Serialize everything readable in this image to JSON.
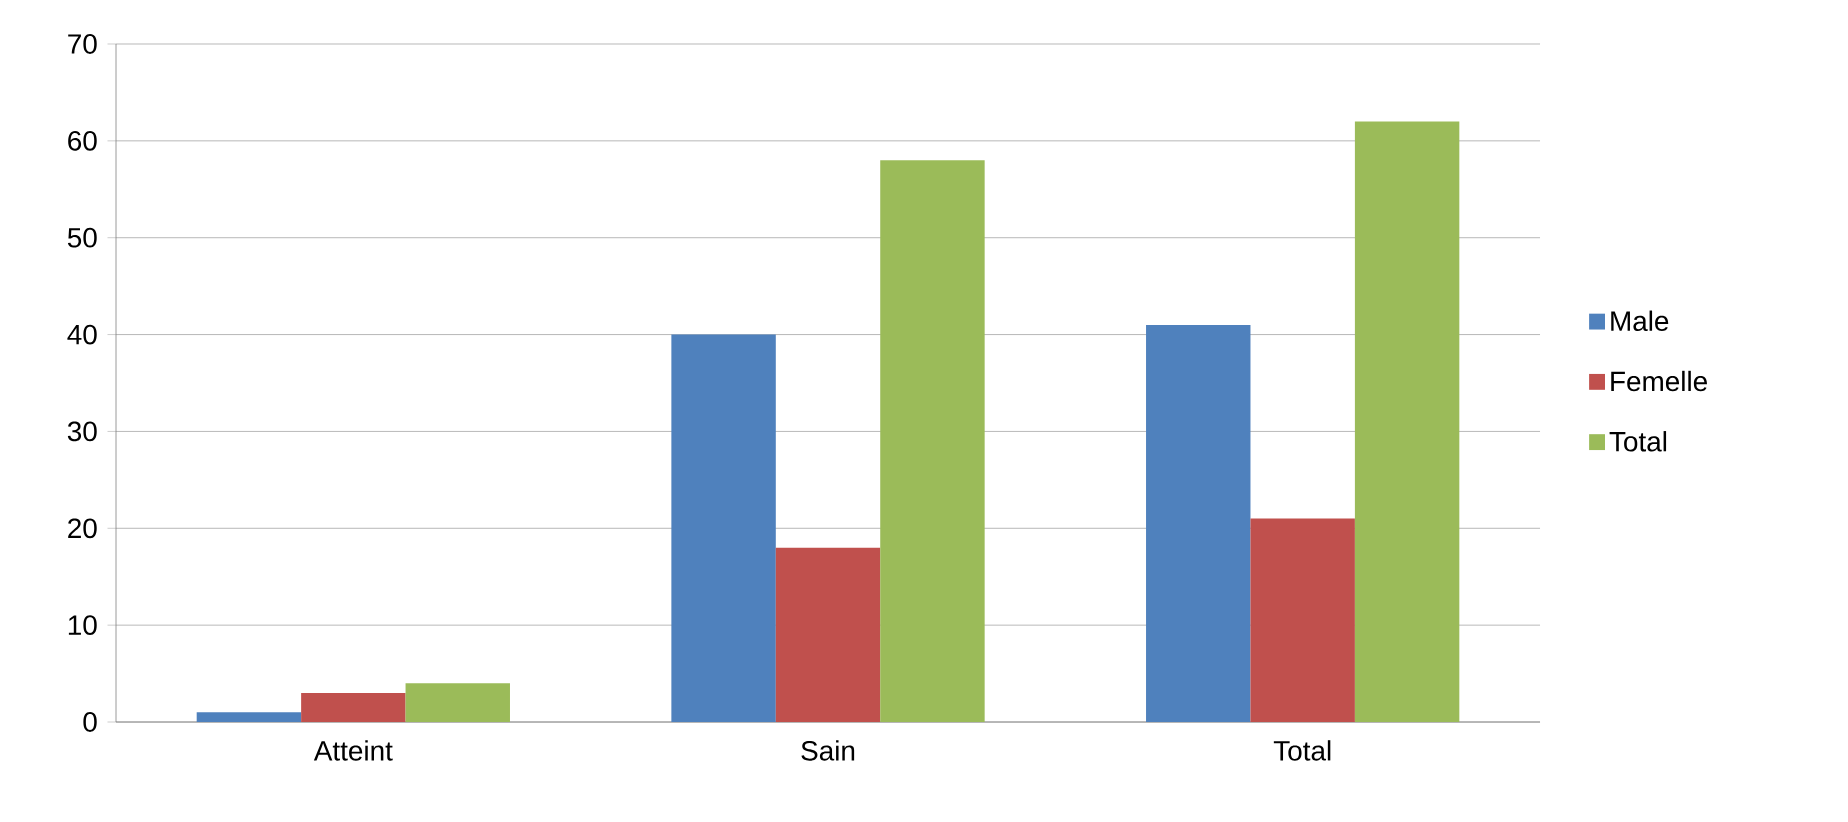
{
  "chart_data": {
    "type": "bar",
    "categories": [
      "Atteint",
      "Sain",
      "Total"
    ],
    "series": [
      {
        "name": "Male",
        "color": "#4f81bd",
        "values": [
          1,
          40,
          41
        ]
      },
      {
        "name": "Femelle",
        "color": "#c0504d",
        "values": [
          3,
          18,
          21
        ]
      },
      {
        "name": "Total",
        "color": "#9bbb59",
        "values": [
          4,
          58,
          62
        ]
      }
    ],
    "ylim": [
      0,
      70
    ],
    "yticks": [
      0,
      10,
      20,
      30,
      40,
      50,
      60,
      70
    ],
    "grid": "y",
    "legend": "right"
  }
}
